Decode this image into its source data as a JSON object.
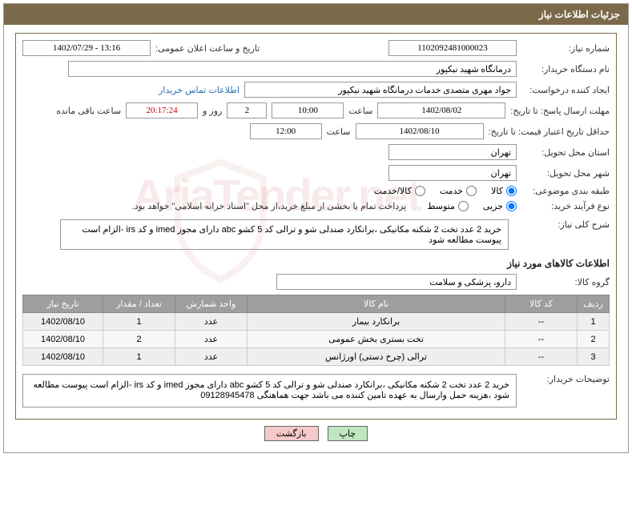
{
  "header": {
    "title": "جزئیات اطلاعات نیاز"
  },
  "fields": {
    "need_no_label": "شماره نیاز:",
    "need_no": "1102092481000023",
    "announce_label": "تاریخ و ساعت اعلان عمومی:",
    "announce": "1402/07/29 - 13:16",
    "buyer_org_label": "نام دستگاه خریدار:",
    "buyer_org": "درمانگاه شهید نیکپور",
    "requester_label": "ایجاد کننده درخواست:",
    "requester": "جواد مهری متصدی خدمات درمانگاه شهید نیکپور",
    "contact_link": "اطلاعات تماس خریدار",
    "deadline_label": "مهلت ارسال پاسخ: تا تاریخ:",
    "deadline_date": "1402/08/02",
    "time_label": "ساعت",
    "deadline_time": "10:00",
    "days": "2",
    "days_label": "روز و",
    "countdown": "20:17:24",
    "remaining_label": "ساعت باقی مانده",
    "validity_label": "حداقل تاریخ اعتبار قیمت: تا تاریخ:",
    "validity_date": "1402/08/10",
    "validity_time": "12:00",
    "province_label": "استان محل تحویل:",
    "province": "تهران",
    "city_label": "شهر محل تحویل:",
    "city": "تهران",
    "category_label": "طبقه بندی موضوعی:",
    "cat_goods": "کالا",
    "cat_service": "خدمت",
    "cat_both": "کالا/خدمت",
    "process_label": "نوع فرآیند خرید:",
    "proc_small": "جزیی",
    "proc_medium": "متوسط",
    "proc_note": "پرداخت تمام یا بخشی از مبلغ خرید،از محل \"اسناد خزانه اسلامی\" خواهد بود.",
    "overview_label": "شرح کلی نیاز:",
    "overview": "خرید 2 عدد تخت 2 شکنه مکانیکی ،برانکارد صندلی شو و ترالی کد 5 کشو abc دارای مجوز imed و کد irs -الزام است پیوست مطالعه شود",
    "items_section": "اطلاعات کالاهای مورد نیاز",
    "group_label": "گروه کالا:",
    "group": "دارو، پزشکی و سلامت",
    "buyer_notes_label": "توضیحات خریدار:",
    "buyer_notes": "خرید 2 عدد تخت 2 شکنه مکانیکی ،برانکارد صندلی شو و ترالی کد 5 کشو abc دارای مجوز imed و کد irs -الزام است پیوست مطالعه شود ،هزینه حمل وارسال به عهده تامین کننده می باشد جهت هماهنگی 09128945478"
  },
  "table": {
    "cols": {
      "row": "ردیف",
      "code": "کد کالا",
      "name": "نام کالا",
      "unit": "واحد شمارش",
      "qty": "تعداد / مقدار",
      "date": "تاریخ نیاز"
    },
    "rows": [
      {
        "n": "1",
        "code": "--",
        "name": "برانکارد بیمار",
        "unit": "عدد",
        "qty": "1",
        "date": "1402/08/10"
      },
      {
        "n": "2",
        "code": "--",
        "name": "تخت بستری بخش عمومی",
        "unit": "عدد",
        "qty": "2",
        "date": "1402/08/10"
      },
      {
        "n": "3",
        "code": "--",
        "name": "ترالی (چرخ دستی) اورژانس",
        "unit": "عدد",
        "qty": "1",
        "date": "1402/08/10"
      }
    ]
  },
  "buttons": {
    "print": "چاپ",
    "back": "بازگشت"
  },
  "watermark": "AriaTender.net",
  "colors": {
    "header_bg": "#7a6a4a",
    "th_bg": "#9e9e9e",
    "td_bg": "#eeeeee",
    "link": "#2a6fb5",
    "btn_print": "#bfe6bf",
    "btn_back": "#f5c9c9"
  }
}
